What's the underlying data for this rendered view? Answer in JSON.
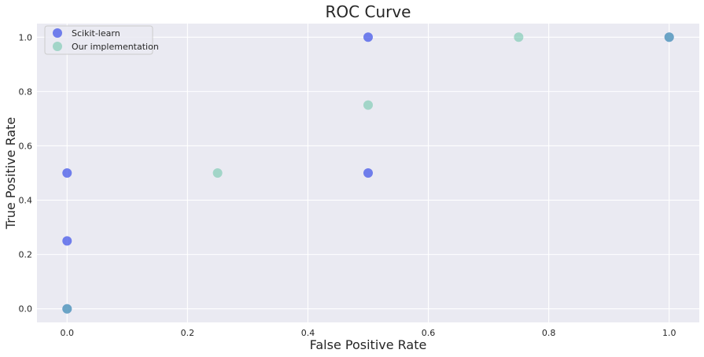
{
  "chart_data": {
    "type": "scatter",
    "title": "ROC Curve",
    "xlabel": "False Positive Rate",
    "ylabel": "True Positive Rate",
    "xlim": [
      -0.05,
      1.05
    ],
    "ylim": [
      -0.05,
      1.05
    ],
    "xticks": [
      0.0,
      0.2,
      0.4,
      0.6,
      0.8,
      1.0
    ],
    "xtick_labels": [
      "0.0",
      "0.2",
      "0.4",
      "0.6",
      "0.8",
      "1.0"
    ],
    "yticks": [
      0.0,
      0.2,
      0.4,
      0.6,
      0.8,
      1.0
    ],
    "ytick_labels": [
      "0.0",
      "0.2",
      "0.4",
      "0.6",
      "0.8",
      "1.0"
    ],
    "grid": true,
    "legend_position": "top-left",
    "series": [
      {
        "name": "Scikit-learn",
        "color": "#3b4ee8",
        "points": [
          [
            0.0,
            0.0
          ],
          [
            0.0,
            0.25
          ],
          [
            0.0,
            0.5
          ],
          [
            0.5,
            0.5
          ],
          [
            0.5,
            1.0
          ],
          [
            1.0,
            1.0
          ]
        ]
      },
      {
        "name": "Our implementation",
        "color": "#66c2a5",
        "points": [
          [
            0.0,
            0.0
          ],
          [
            0.25,
            0.5
          ],
          [
            0.5,
            0.75
          ],
          [
            0.75,
            1.0
          ],
          [
            1.0,
            1.0
          ]
        ]
      }
    ]
  },
  "colors": {
    "plot_background": "#eaeaf2",
    "grid": "#ffffff",
    "text": "#262626"
  }
}
